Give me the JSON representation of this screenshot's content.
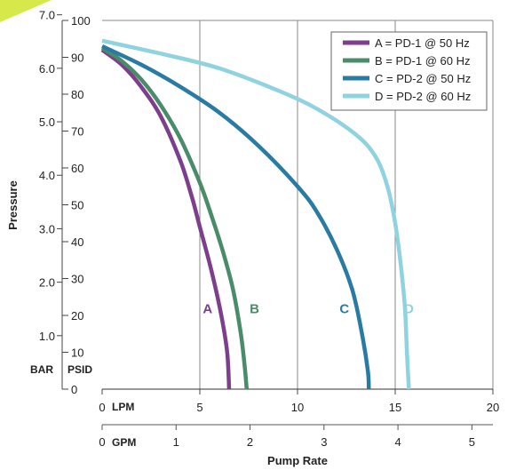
{
  "chart_data": {
    "type": "line",
    "xlabel": "Pump Rate",
    "ylabel": "Pressure",
    "x_primary": {
      "unit": "LPM",
      "lim": [
        0,
        20
      ],
      "ticks": [
        0,
        5,
        10,
        15,
        20
      ]
    },
    "x_secondary": {
      "unit": "GPM",
      "ticks": [
        0,
        1,
        2,
        3,
        4,
        5
      ],
      "lpm_per_gpm": 3.785
    },
    "y_psid": {
      "unit": "PSID",
      "lim": [
        0,
        100
      ],
      "ticks": [
        0,
        10,
        20,
        30,
        40,
        50,
        60,
        70,
        80,
        90,
        100
      ]
    },
    "y_bar": {
      "unit": "BAR",
      "ticks": [
        "1.0",
        "2.0",
        "3.0",
        "4.0",
        "5.0",
        "6.0",
        "7.0"
      ]
    },
    "grid": "vertical",
    "legend": "top-right",
    "series": [
      {
        "key": "A",
        "name": "A = PD-1 @ 50 Hz",
        "label": "A",
        "color": "#7d3f8c",
        "label_at": [
          5.4,
          22
        ],
        "points": [
          [
            0,
            92
          ],
          [
            1,
            88
          ],
          [
            2,
            82
          ],
          [
            3,
            74
          ],
          [
            4,
            62
          ],
          [
            4.6,
            52
          ],
          [
            5,
            44
          ],
          [
            5.6,
            32
          ],
          [
            6.1,
            20
          ],
          [
            6.4,
            10
          ],
          [
            6.5,
            0
          ]
        ]
      },
      {
        "key": "B",
        "name": "B = PD-1 @ 60 Hz",
        "label": "B",
        "color": "#4a8c6a",
        "label_at": [
          7.8,
          22
        ],
        "points": [
          [
            0,
            92.5
          ],
          [
            1,
            89
          ],
          [
            2,
            84
          ],
          [
            3,
            77
          ],
          [
            4,
            68
          ],
          [
            5,
            56
          ],
          [
            5.6,
            47
          ],
          [
            6.2,
            37
          ],
          [
            6.7,
            27
          ],
          [
            7.1,
            15
          ],
          [
            7.3,
            6
          ],
          [
            7.4,
            0
          ]
        ]
      },
      {
        "key": "C",
        "name": "C = PD-2 @ 50 Hz",
        "label": "C",
        "color": "#2a7ba3",
        "label_at": [
          12.4,
          22
        ],
        "points": [
          [
            0,
            93
          ],
          [
            2,
            88
          ],
          [
            4,
            82
          ],
          [
            6,
            75
          ],
          [
            8,
            66
          ],
          [
            10,
            55
          ],
          [
            11,
            48
          ],
          [
            12,
            38
          ],
          [
            12.8,
            27
          ],
          [
            13.3,
            15
          ],
          [
            13.6,
            5
          ],
          [
            13.65,
            0
          ]
        ]
      },
      {
        "key": "D",
        "name": "D = PD-2 @ 60 Hz",
        "label": "D",
        "color": "#8fd3e0",
        "label_at": [
          15.7,
          22
        ],
        "points": [
          [
            0,
            94.5
          ],
          [
            3,
            91
          ],
          [
            6,
            87
          ],
          [
            9,
            81
          ],
          [
            11,
            76
          ],
          [
            13,
            69
          ],
          [
            14,
            63
          ],
          [
            14.6,
            55
          ],
          [
            15,
            45
          ],
          [
            15.3,
            33
          ],
          [
            15.5,
            22
          ],
          [
            15.6,
            10
          ],
          [
            15.7,
            0
          ]
        ]
      }
    ]
  }
}
